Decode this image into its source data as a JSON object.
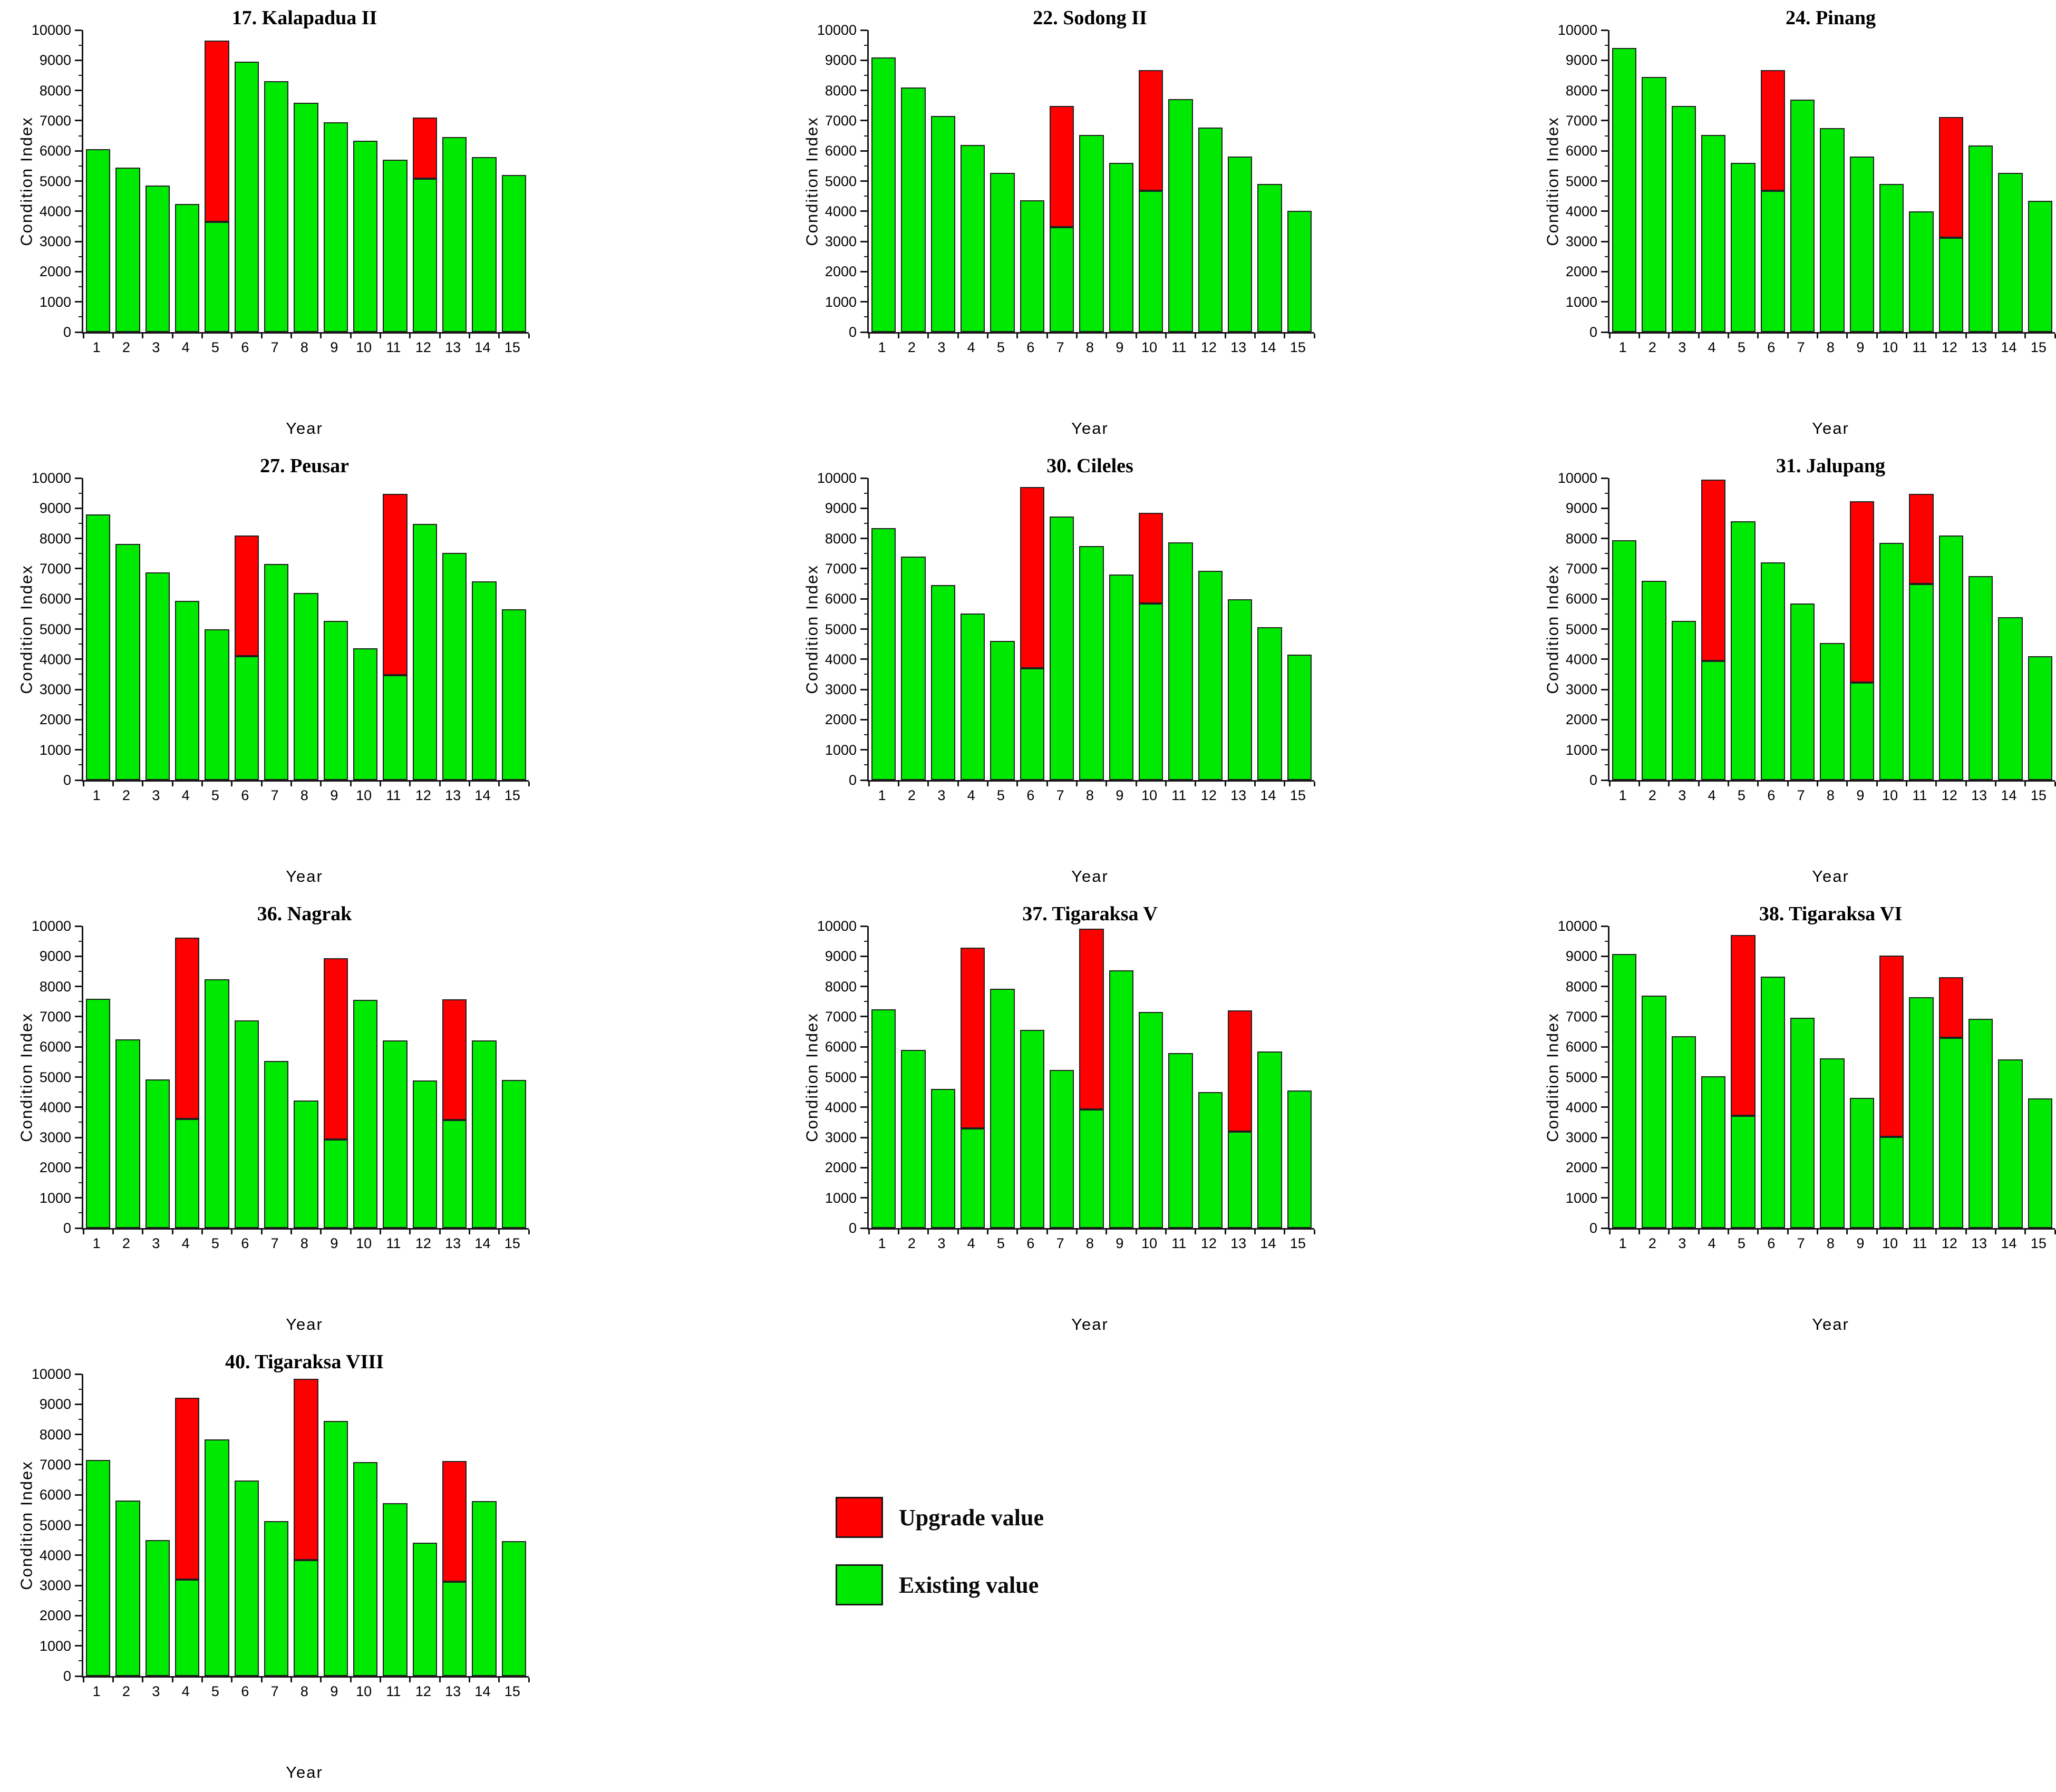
{
  "figure": {
    "background": "#ffffff",
    "axis_color": "#161616",
    "bar_outline_color": "#1f1f1f",
    "existing_color": "#00e900",
    "upgrade_color": "#fe0000",
    "shared_ylabel": "Condition Index",
    "shared_xlabel": "Year"
  },
  "legend": {
    "items": [
      {
        "label": "Upgrade value",
        "color": "#fe0000"
      },
      {
        "label": "Existing value",
        "color": "#00e900"
      }
    ]
  },
  "chart_data": [
    {
      "type": "bar",
      "title": "17. Kalapadua II",
      "xlabel": "Year",
      "ylabel": "Condition Index",
      "ylim": [
        0,
        10000
      ],
      "yticks": [
        0,
        1000,
        2000,
        3000,
        4000,
        5000,
        6000,
        7000,
        8000,
        9000,
        10000
      ],
      "categories": [
        1,
        2,
        3,
        4,
        5,
        6,
        7,
        8,
        9,
        10,
        11,
        12,
        13,
        14,
        15
      ],
      "series": [
        {
          "name": "Existing value",
          "values": [
            6050,
            5450,
            4850,
            4250,
            3650,
            8950,
            8300,
            7600,
            6950,
            6330,
            5700,
            5080,
            6450,
            5800,
            5200
          ]
        },
        {
          "name": "Upgrade value",
          "note": "top of red segment stacked above existing",
          "values": [
            null,
            null,
            null,
            null,
            9650,
            null,
            null,
            null,
            null,
            null,
            null,
            7100,
            null,
            null,
            null
          ]
        }
      ]
    },
    {
      "type": "bar",
      "title": "22. Sodong II",
      "xlabel": "Year",
      "ylabel": "Condition Index",
      "ylim": [
        0,
        10000
      ],
      "yticks": [
        0,
        1000,
        2000,
        3000,
        4000,
        5000,
        6000,
        7000,
        8000,
        9000,
        10000
      ],
      "categories": [
        1,
        2,
        3,
        4,
        5,
        6,
        7,
        8,
        9,
        10,
        11,
        12,
        13,
        14,
        15
      ],
      "series": [
        {
          "name": "Existing value",
          "values": [
            9100,
            8100,
            7150,
            6200,
            5270,
            4370,
            3480,
            6530,
            5600,
            4680,
            7720,
            6770,
            5820,
            4900,
            4020
          ]
        },
        {
          "name": "Upgrade value",
          "note": "top of red segment stacked above existing",
          "values": [
            null,
            null,
            null,
            null,
            null,
            null,
            7480,
            null,
            null,
            8680,
            null,
            null,
            null,
            null,
            null
          ]
        }
      ]
    },
    {
      "type": "bar",
      "title": "24. Pinang",
      "xlabel": "Year",
      "ylabel": "Condition Index",
      "ylim": [
        0,
        10000
      ],
      "yticks": [
        0,
        1000,
        2000,
        3000,
        4000,
        5000,
        6000,
        7000,
        8000,
        9000,
        10000
      ],
      "categories": [
        1,
        2,
        3,
        4,
        5,
        6,
        7,
        8,
        9,
        10,
        11,
        12,
        13,
        14,
        15
      ],
      "series": [
        {
          "name": "Existing value",
          "values": [
            9400,
            8450,
            7480,
            6530,
            5600,
            4680,
            7700,
            6750,
            5820,
            4900,
            4000,
            3120,
            6180,
            5270,
            4350
          ]
        },
        {
          "name": "Upgrade value",
          "note": "top of red segment stacked above existing",
          "values": [
            null,
            null,
            null,
            null,
            null,
            8680,
            null,
            null,
            null,
            null,
            null,
            7120,
            null,
            null,
            null
          ]
        }
      ]
    },
    {
      "type": "bar",
      "title": "27. Peusar",
      "xlabel": "Year",
      "ylabel": "Condition Index",
      "ylim": [
        0,
        10000
      ],
      "yticks": [
        0,
        1000,
        2000,
        3000,
        4000,
        5000,
        6000,
        7000,
        8000,
        9000,
        10000
      ],
      "categories": [
        1,
        2,
        3,
        4,
        5,
        6,
        7,
        8,
        9,
        10,
        11,
        12,
        13,
        14,
        15
      ],
      "series": [
        {
          "name": "Existing value",
          "values": [
            8800,
            7820,
            6870,
            5930,
            5000,
            4100,
            7150,
            6200,
            5270,
            4370,
            3470,
            8480,
            7530,
            6580,
            5650
          ]
        },
        {
          "name": "Upgrade value",
          "note": "top of red segment stacked above existing",
          "values": [
            null,
            null,
            null,
            null,
            null,
            8100,
            null,
            null,
            null,
            null,
            9470,
            null,
            null,
            null,
            null
          ]
        }
      ]
    },
    {
      "type": "bar",
      "title": "30. Cileles",
      "xlabel": "Year",
      "ylabel": "Condition Index",
      "ylim": [
        0,
        10000
      ],
      "yticks": [
        0,
        1000,
        2000,
        3000,
        4000,
        5000,
        6000,
        7000,
        8000,
        9000,
        10000
      ],
      "categories": [
        1,
        2,
        3,
        4,
        5,
        6,
        7,
        8,
        9,
        10,
        11,
        12,
        13,
        14,
        15
      ],
      "series": [
        {
          "name": "Existing value",
          "values": [
            8350,
            7400,
            6450,
            5520,
            4600,
            3700,
            8720,
            7750,
            6800,
            5850,
            7880,
            6930,
            5980,
            5060,
            4150
          ]
        },
        {
          "name": "Upgrade value",
          "note": "top of red segment stacked above existing",
          "values": [
            null,
            null,
            null,
            null,
            null,
            9700,
            null,
            null,
            null,
            8850,
            null,
            null,
            null,
            null,
            null
          ]
        }
      ]
    },
    {
      "type": "bar",
      "title": "31. Jalupang",
      "xlabel": "Year",
      "ylabel": "Condition Index",
      "ylim": [
        0,
        10000
      ],
      "yticks": [
        0,
        1000,
        2000,
        3000,
        4000,
        5000,
        6000,
        7000,
        8000,
        9000,
        10000
      ],
      "categories": [
        1,
        2,
        3,
        4,
        5,
        6,
        7,
        8,
        9,
        10,
        11,
        12,
        13,
        14,
        15
      ],
      "series": [
        {
          "name": "Existing value",
          "values": [
            7950,
            6600,
            5280,
            3950,
            8570,
            7200,
            5850,
            4530,
            3230,
            7850,
            6500,
            8100,
            6750,
            5400,
            4100
          ]
        },
        {
          "name": "Upgrade value",
          "note": "top of red segment stacked above existing",
          "values": [
            null,
            null,
            null,
            9950,
            null,
            null,
            null,
            null,
            9230,
            null,
            9480,
            null,
            null,
            null,
            null
          ]
        }
      ]
    },
    {
      "type": "bar",
      "title": "36. Nagrak",
      "xlabel": "Year",
      "ylabel": "Condition Index",
      "ylim": [
        0,
        10000
      ],
      "yticks": [
        0,
        1000,
        2000,
        3000,
        4000,
        5000,
        6000,
        7000,
        8000,
        9000,
        10000
      ],
      "categories": [
        1,
        2,
        3,
        4,
        5,
        6,
        7,
        8,
        9,
        10,
        11,
        12,
        13,
        14,
        15
      ],
      "series": [
        {
          "name": "Existing value",
          "values": [
            7600,
            6250,
            4920,
            3620,
            8230,
            6880,
            5540,
            4230,
            2930,
            7560,
            6210,
            4880,
            3580,
            6220,
            4900
          ]
        },
        {
          "name": "Upgrade value",
          "note": "top of red segment stacked above existing",
          "values": [
            null,
            null,
            null,
            9620,
            null,
            null,
            null,
            null,
            8930,
            null,
            null,
            null,
            7580,
            null,
            null
          ]
        }
      ]
    },
    {
      "type": "bar",
      "title": "37. Tigaraksa V",
      "xlabel": "Year",
      "ylabel": "Condition Index",
      "ylim": [
        0,
        10000
      ],
      "yticks": [
        0,
        1000,
        2000,
        3000,
        4000,
        5000,
        6000,
        7000,
        8000,
        9000,
        10000
      ],
      "categories": [
        1,
        2,
        3,
        4,
        5,
        6,
        7,
        8,
        9,
        10,
        11,
        12,
        13,
        14,
        15
      ],
      "series": [
        {
          "name": "Existing value",
          "values": [
            7250,
            5900,
            4600,
            3300,
            7920,
            6560,
            5230,
            3920,
            8530,
            7150,
            5800,
            4500,
            3200,
            5850,
            4550
          ]
        },
        {
          "name": "Upgrade value",
          "note": "top of red segment stacked above existing",
          "values": [
            null,
            null,
            null,
            9280,
            null,
            null,
            null,
            9920,
            null,
            null,
            null,
            null,
            7200,
            null,
            null
          ]
        }
      ]
    },
    {
      "type": "bar",
      "title": "38. Tigaraksa VI",
      "xlabel": "Year",
      "ylabel": "Condition Index",
      "ylim": [
        0,
        10000
      ],
      "yticks": [
        0,
        1000,
        2000,
        3000,
        4000,
        5000,
        6000,
        7000,
        8000,
        9000,
        10000
      ],
      "categories": [
        1,
        2,
        3,
        4,
        5,
        6,
        7,
        8,
        9,
        10,
        11,
        12,
        13,
        14,
        15
      ],
      "series": [
        {
          "name": "Existing value",
          "values": [
            9080,
            7700,
            6350,
            5030,
            3720,
            8330,
            6960,
            5620,
            4320,
            3020,
            7650,
            6300,
            6930,
            5590,
            4290
          ]
        },
        {
          "name": "Upgrade value",
          "note": "top of red segment stacked above existing",
          "values": [
            null,
            null,
            null,
            null,
            9700,
            null,
            null,
            null,
            null,
            9020,
            null,
            8300,
            null,
            null,
            null
          ]
        }
      ]
    },
    {
      "type": "bar",
      "title": "40. Tigaraksa VIII",
      "xlabel": "Year",
      "ylabel": "Condition Index",
      "ylim": [
        0,
        10000
      ],
      "yticks": [
        0,
        1000,
        2000,
        3000,
        4000,
        5000,
        6000,
        7000,
        8000,
        9000,
        10000
      ],
      "categories": [
        1,
        2,
        3,
        4,
        5,
        6,
        7,
        8,
        9,
        10,
        11,
        12,
        13,
        14,
        15
      ],
      "series": [
        {
          "name": "Existing value",
          "values": [
            7150,
            5820,
            4500,
            3200,
            7830,
            6470,
            5140,
            3840,
            8440,
            7080,
            5730,
            4420,
            3130,
            5790,
            4470
          ]
        },
        {
          "name": "Upgrade value",
          "note": "top of red segment stacked above existing",
          "values": [
            null,
            null,
            null,
            9210,
            null,
            null,
            null,
            9840,
            null,
            null,
            null,
            null,
            7130,
            null,
            null
          ]
        }
      ]
    }
  ]
}
